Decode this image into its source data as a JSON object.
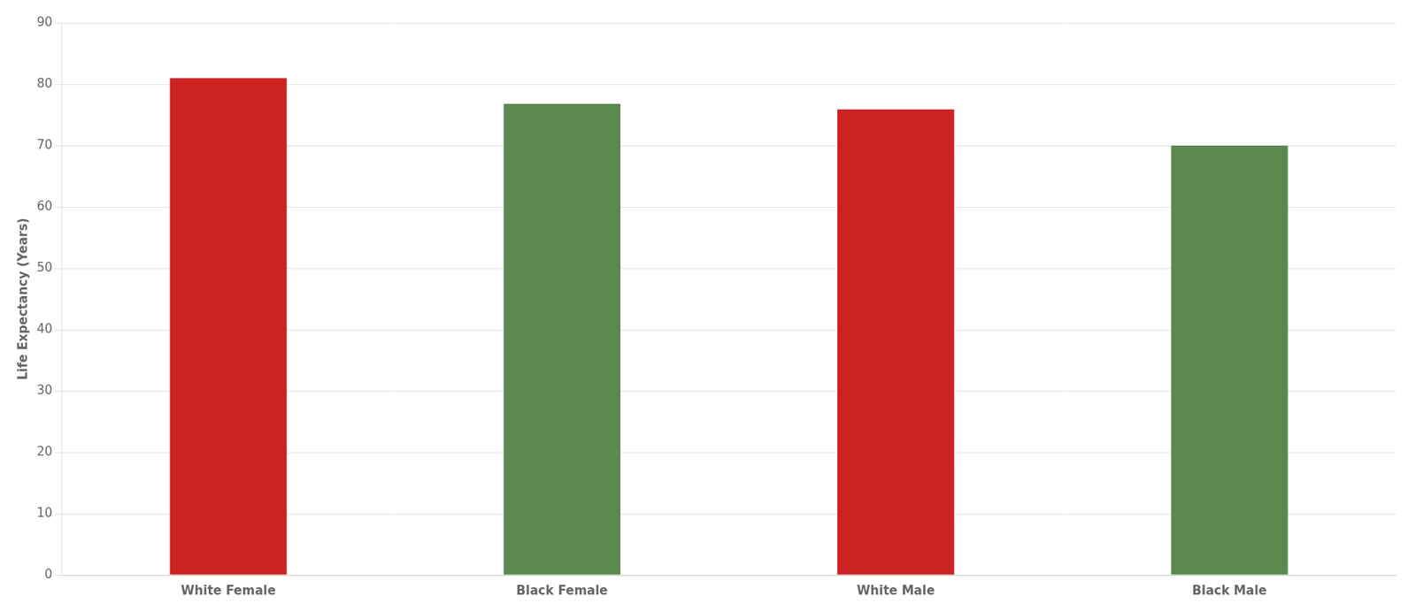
{
  "chart_data": {
    "type": "bar",
    "categories": [
      "White Female",
      "Black Female",
      "White Male",
      "Black Male"
    ],
    "values": [
      81.0,
      76.8,
      75.9,
      70.0
    ],
    "colors": [
      "#cc2222",
      "#5a8a50",
      "#cc2222",
      "#5a8a50"
    ],
    "ylabel": "Life Expectancy (Years)",
    "ylim": [
      0,
      90
    ],
    "yticks": [
      0,
      10,
      20,
      30,
      40,
      50,
      60,
      70,
      80,
      90
    ],
    "grid": true
  }
}
